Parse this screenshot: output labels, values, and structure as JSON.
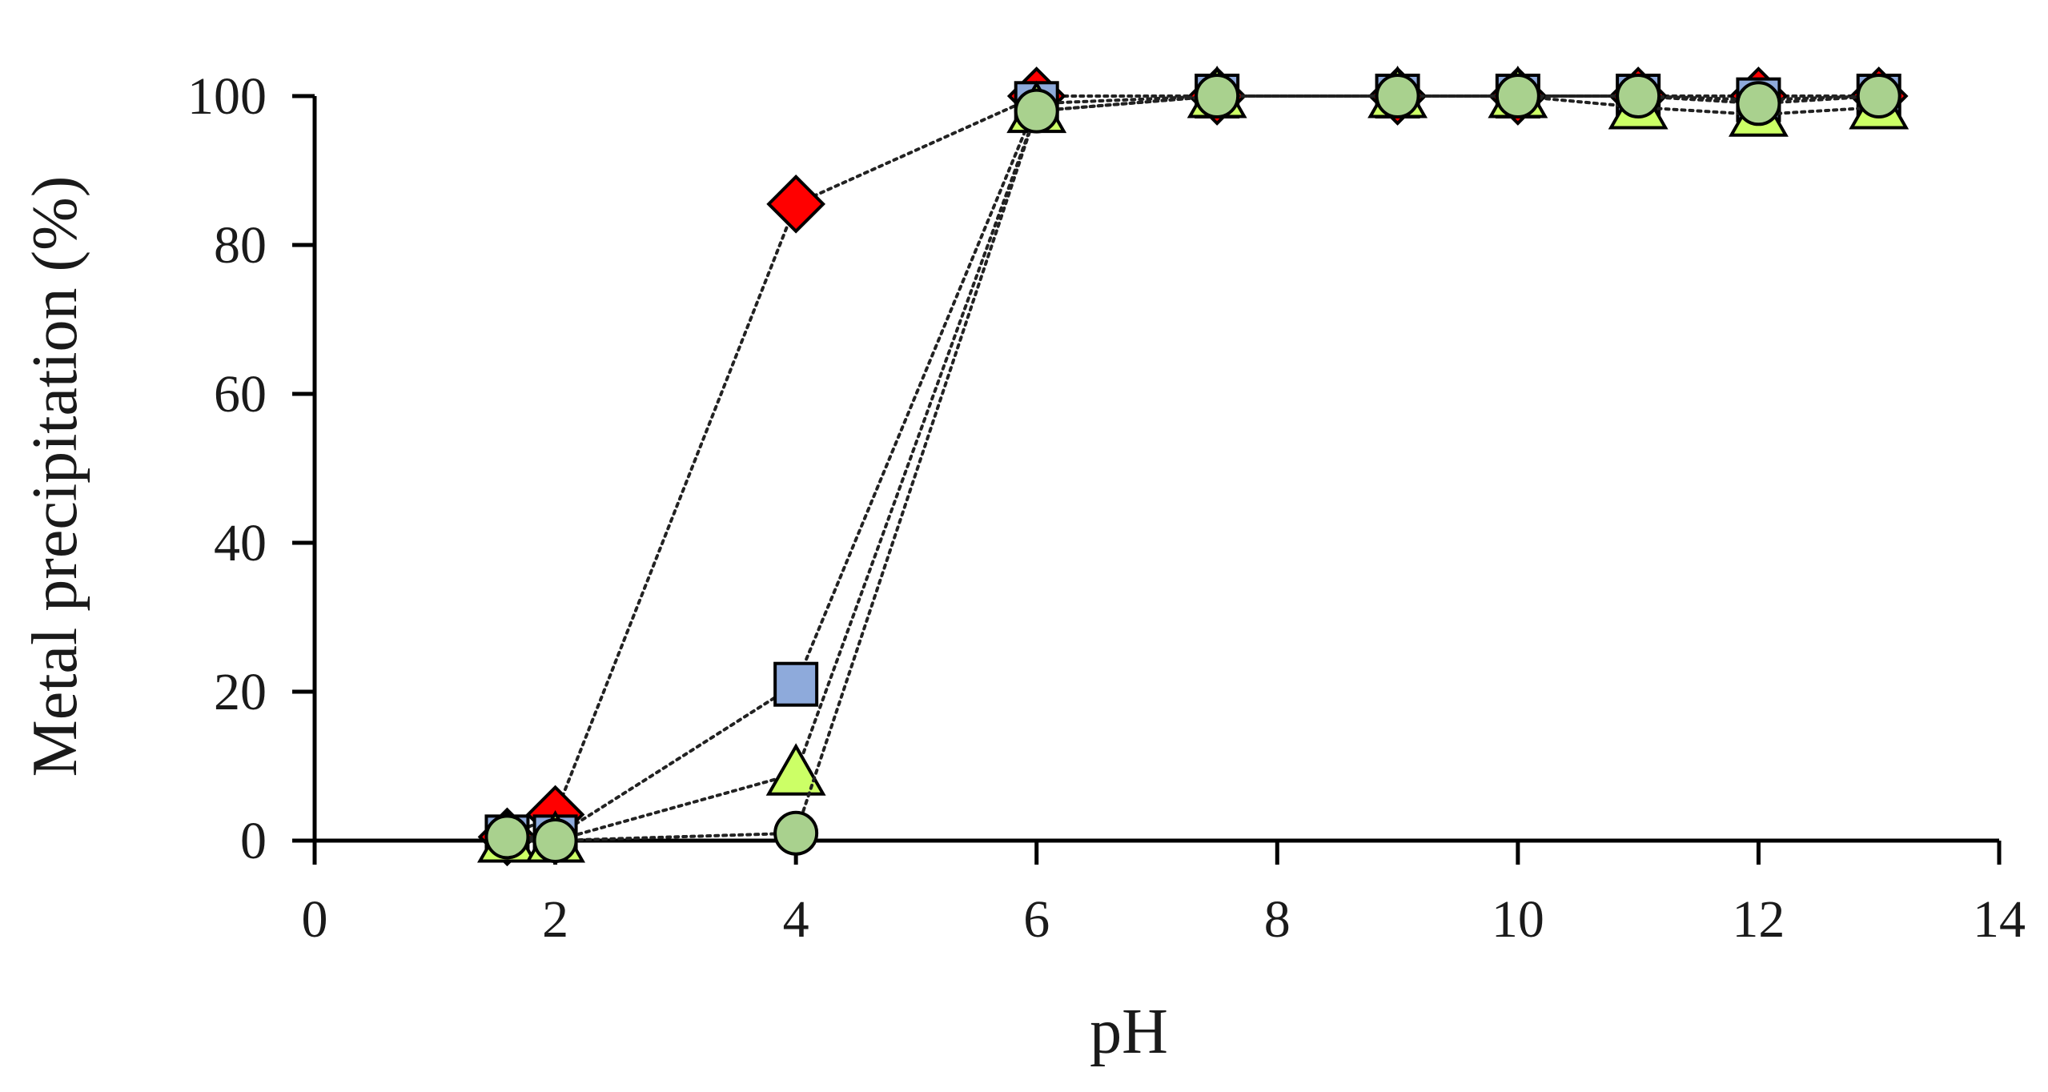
{
  "chart_data": {
    "type": "scatter",
    "xlabel": "pH",
    "ylabel": "Metal precipitation (%)",
    "xlim": [
      0,
      14
    ],
    "ylim": [
      0,
      100
    ],
    "x_ticks": [
      "0",
      "2",
      "4",
      "6",
      "8",
      "10",
      "12",
      "14"
    ],
    "y_ticks": [
      "0",
      "20",
      "40",
      "60",
      "80",
      "100"
    ],
    "grid": false,
    "legend": "none",
    "line_style": "dotted",
    "series": [
      {
        "marker": "diamond",
        "color": "#ff0000",
        "points": [
          [
            1.6,
            0.5
          ],
          [
            2.0,
            3.5
          ],
          [
            4.0,
            85.5
          ],
          [
            6.0,
            100
          ],
          [
            7.5,
            100
          ],
          [
            9.0,
            100
          ],
          [
            10.0,
            100
          ],
          [
            11.0,
            100
          ],
          [
            12.0,
            100
          ],
          [
            13.0,
            100
          ]
        ]
      },
      {
        "marker": "square",
        "color": "#8eaadb",
        "points": [
          [
            1.6,
            0.5
          ],
          [
            2.0,
            0.5
          ],
          [
            4.0,
            21
          ],
          [
            6.0,
            99
          ],
          [
            7.5,
            100
          ],
          [
            9.0,
            100
          ],
          [
            10.0,
            100
          ],
          [
            11.0,
            100
          ],
          [
            12.0,
            99.5
          ],
          [
            13.0,
            100
          ]
        ]
      },
      {
        "marker": "triangle",
        "color": "#ccff66",
        "points": [
          [
            1.6,
            0
          ],
          [
            2.0,
            0
          ],
          [
            4.0,
            9
          ],
          [
            6.0,
            98
          ],
          [
            7.5,
            100
          ],
          [
            9.0,
            100
          ],
          [
            10.0,
            100
          ],
          [
            11.0,
            98.5
          ],
          [
            12.0,
            97.5
          ],
          [
            13.0,
            98.5
          ]
        ]
      },
      {
        "marker": "circle",
        "color": "#a9d18e",
        "points": [
          [
            1.6,
            0.5
          ],
          [
            2.0,
            0
          ],
          [
            4.0,
            1
          ],
          [
            6.0,
            98
          ],
          [
            7.5,
            100
          ],
          [
            9.0,
            100
          ],
          [
            10.0,
            100
          ],
          [
            11.0,
            100
          ],
          [
            12.0,
            99
          ],
          [
            13.0,
            100
          ]
        ]
      }
    ]
  }
}
